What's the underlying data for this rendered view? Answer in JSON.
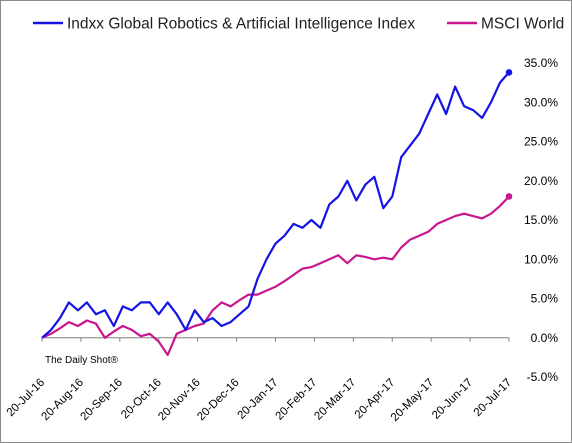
{
  "chart_data": {
    "type": "line",
    "title": "",
    "xlabel": "",
    "ylabel": "",
    "ylim": [
      -5,
      35
    ],
    "yticks": [
      "-5.0%",
      "0.0%",
      "5.0%",
      "10.0%",
      "15.0%",
      "20.0%",
      "25.0%",
      "30.0%",
      "35.0%"
    ],
    "y_tick_values": [
      -5,
      0,
      5,
      10,
      15,
      20,
      25,
      30,
      35
    ],
    "x_tick_labels": [
      "20-Jul-16",
      "20-Aug-16",
      "20-Sep-16",
      "20-Oct-16",
      "20-Nov-16",
      "20-Dec-16",
      "20-Jan-17",
      "20-Feb-17",
      "20-Mar-17",
      "20-Apr-17",
      "20-May-17",
      "20-Jun-17",
      "20-Jul-17"
    ],
    "x": [
      "2016-07-20",
      "2016-07-27",
      "2016-08-03",
      "2016-08-10",
      "2016-08-17",
      "2016-08-24",
      "2016-08-31",
      "2016-09-07",
      "2016-09-14",
      "2016-09-21",
      "2016-09-28",
      "2016-10-05",
      "2016-10-12",
      "2016-10-19",
      "2016-10-26",
      "2016-11-02",
      "2016-11-09",
      "2016-11-16",
      "2016-11-23",
      "2016-11-30",
      "2016-12-07",
      "2016-12-14",
      "2016-12-21",
      "2016-12-28",
      "2017-01-04",
      "2017-01-11",
      "2017-01-18",
      "2017-01-25",
      "2017-02-01",
      "2017-02-08",
      "2017-02-15",
      "2017-02-22",
      "2017-03-01",
      "2017-03-08",
      "2017-03-15",
      "2017-03-22",
      "2017-03-29",
      "2017-04-05",
      "2017-04-12",
      "2017-04-19",
      "2017-04-26",
      "2017-05-03",
      "2017-05-10",
      "2017-05-17",
      "2017-05-24",
      "2017-05-31",
      "2017-06-07",
      "2017-06-14",
      "2017-06-21",
      "2017-06-28",
      "2017-07-05",
      "2017-07-12",
      "2017-07-19"
    ],
    "series": [
      {
        "name": "Indxx Global Robotics & Artificial Intelligence Index",
        "color": "#1414e6",
        "values": [
          0.0,
          1.0,
          2.5,
          4.5,
          3.5,
          4.5,
          3.0,
          3.5,
          1.5,
          4.0,
          3.5,
          4.5,
          4.5,
          3.0,
          4.5,
          3.0,
          1.0,
          3.5,
          2.0,
          2.5,
          1.5,
          2.0,
          3.0,
          4.0,
          7.5,
          10.0,
          12.0,
          13.0,
          14.5,
          14.0,
          15.0,
          14.0,
          17.0,
          18.0,
          20.0,
          17.5,
          19.5,
          20.5,
          16.5,
          18.0,
          23.0,
          24.5,
          26.0,
          28.5,
          31.0,
          28.5,
          32.0,
          29.5,
          29.0,
          28.0,
          30.0,
          32.5,
          33.8
        ]
      },
      {
        "name": "MSCI World",
        "color": "#c8168f",
        "values": [
          0.0,
          0.5,
          1.2,
          2.0,
          1.5,
          2.2,
          1.8,
          0.0,
          0.8,
          1.5,
          1.0,
          0.2,
          0.5,
          -0.5,
          -2.2,
          0.5,
          1.0,
          1.5,
          1.8,
          3.5,
          4.5,
          4.0,
          4.8,
          5.5,
          5.5,
          6.0,
          6.5,
          7.2,
          8.0,
          8.8,
          9.0,
          9.5,
          10.0,
          10.5,
          9.5,
          10.5,
          10.3,
          10.0,
          10.2,
          10.0,
          11.5,
          12.5,
          13.0,
          13.5,
          14.5,
          15.0,
          15.5,
          15.8,
          15.5,
          15.2,
          15.8,
          16.8,
          18.0
        ]
      }
    ],
    "legend": "top",
    "grid": false,
    "annotation": "The Daily Shot®"
  }
}
